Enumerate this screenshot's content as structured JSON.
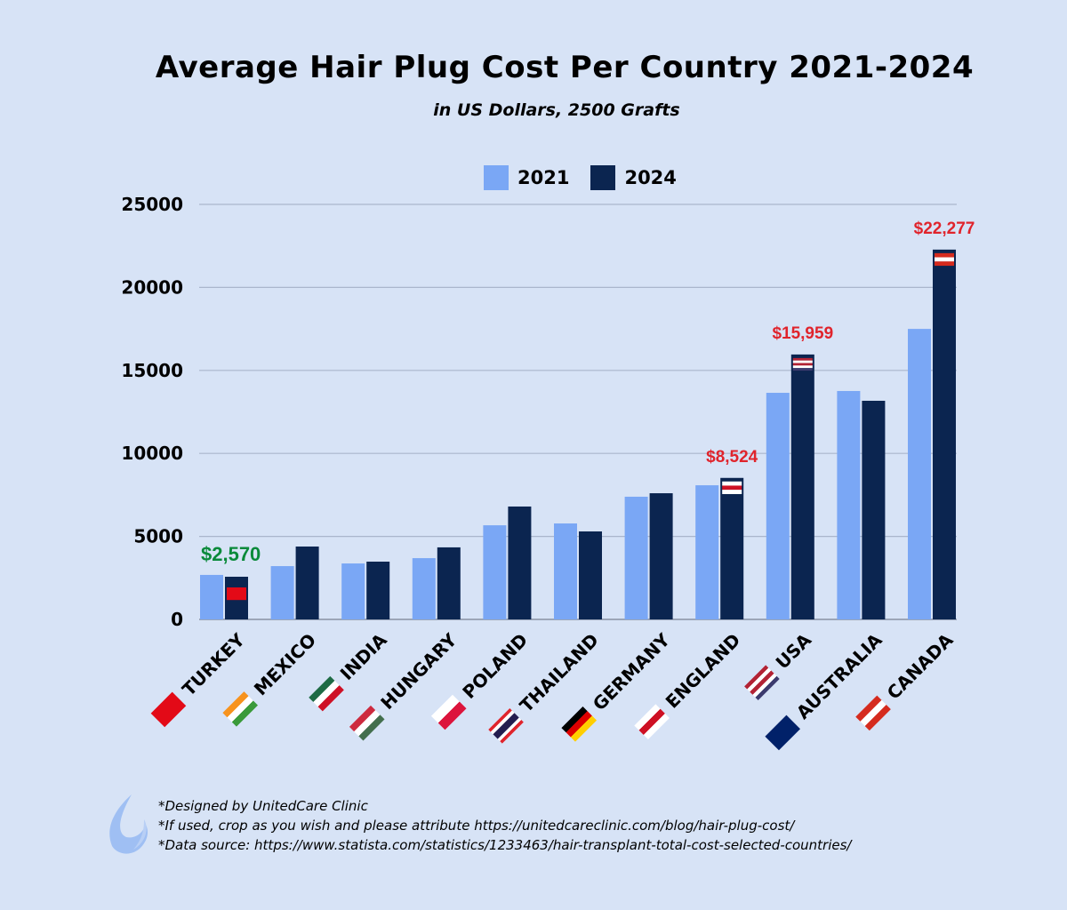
{
  "chart_data": {
    "type": "bar",
    "title": "Average Hair Plug Cost Per Country 2021-2024",
    "subtitle": "in US Dollars, 2500 Grafts",
    "categories": [
      "TURKEY",
      "MEXICO",
      "INDIA",
      "HUNGARY",
      "POLAND",
      "THAILAND",
      "GERMANY",
      "ENGLAND",
      "USA",
      "AUSTRALIA",
      "CANADA"
    ],
    "series": [
      {
        "name": "2021",
        "color": "#7aa7f5",
        "values": [
          2680,
          3210,
          3370,
          3690,
          5670,
          5780,
          7390,
          8080,
          13650,
          13760,
          17500
        ]
      },
      {
        "name": "2024",
        "color": "#0b2550",
        "values": [
          2570,
          4390,
          3480,
          4340,
          6800,
          5300,
          7600,
          8524,
          15959,
          13170,
          22277
        ]
      }
    ],
    "ylim": [
      0,
      25000
    ],
    "yticks": [
      "0",
      "5000",
      "10000",
      "15000",
      "20000",
      "25000"
    ],
    "grid": true,
    "legend_position": "top-center",
    "annotations": [
      {
        "category": "TURKEY",
        "text": "$2,570",
        "color": "#0a8a3a"
      },
      {
        "category": "ENGLAND",
        "text": "$8,524",
        "color": "#e0242c"
      },
      {
        "category": "USA",
        "text": "$15,959",
        "color": "#e0242c"
      },
      {
        "category": "CANADA",
        "text": "$22,277",
        "color": "#e0242c"
      }
    ],
    "flags": [
      [
        "#e30a17"
      ],
      [
        "#f7931e",
        "#ffffff",
        "#3a9a3a"
      ],
      [
        "#1e6b45",
        "#ffffff",
        "#ce1126"
      ],
      [
        "#cd2a3e",
        "#ffffff",
        "#436f4d"
      ],
      [
        "#ffffff",
        "#dc143c"
      ],
      [
        "#e0242c",
        "#ffffff",
        "#241d4f",
        "#241d4f",
        "#ffffff",
        "#e0242c"
      ],
      [
        "#000000",
        "#dd0000",
        "#ffce00"
      ],
      [
        "#ffffff",
        "#ce1124",
        "#ffffff"
      ],
      [
        "#b22234",
        "#ffffff",
        "#b22234",
        "#ffffff",
        "#3c3b6e"
      ],
      [
        "#012169",
        "#012169"
      ],
      [
        "#d52b1e",
        "#ffffff",
        "#d52b1e"
      ]
    ]
  },
  "footer": {
    "lines": [
      "*Designed by UnitedCare Clinic",
      "*If used, crop as you wish and please attribute https://unitedcareclinic.com/blog/hair-plug-cost/",
      "*Data source: https://www.statista.com/statistics/1233463/hair-transplant-total-cost-selected-countries/"
    ]
  }
}
